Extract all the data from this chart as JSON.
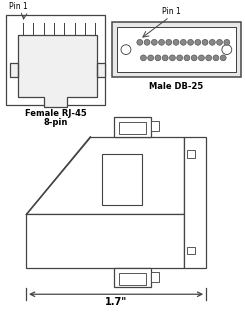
{
  "bg_color": "#ffffff",
  "line_color": "#444444",
  "text_color": "#000000",
  "rj45_label_line1": "Female RJ-45",
  "rj45_label_line2": "8-pin",
  "db25_label": "Male DB-25",
  "pin1_label": "Pin 1",
  "dimension_label": "1.7\""
}
